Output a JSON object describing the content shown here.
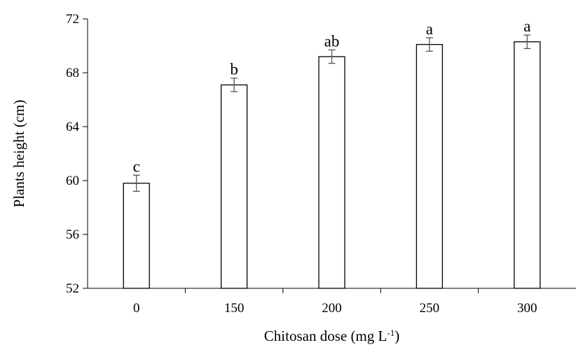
{
  "chart_data": {
    "type": "bar",
    "title": "",
    "xlabel": "Chitosan dose (mg L",
    "xlabel_sup": "-1",
    "xlabel_end": ")",
    "ylabel": "Plants height (cm)",
    "categories": [
      "0",
      "150",
      "200",
      "250",
      "300"
    ],
    "values": [
      59.8,
      67.1,
      69.2,
      70.1,
      70.3
    ],
    "errors": [
      0.6,
      0.5,
      0.5,
      0.5,
      0.5
    ],
    "significance": [
      "c",
      "b",
      "ab",
      "a",
      "a"
    ],
    "ylim": [
      52,
      72
    ],
    "yticks": [
      52,
      56,
      60,
      64,
      68,
      72
    ],
    "grid": false,
    "legend": "none",
    "colors": {
      "bar_fill": "#ffffff",
      "bar_stroke": "#000000",
      "error_bar": "#555555",
      "axis": "#000000"
    }
  }
}
